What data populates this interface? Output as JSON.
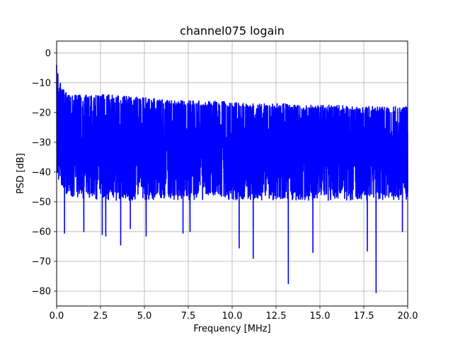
{
  "chart_data": {
    "type": "line",
    "title": "channel075 logain",
    "xlabel": "Frequency [MHz]",
    "ylabel": "PSD [dB]",
    "xlim": [
      0,
      20
    ],
    "ylim": [
      -85,
      4
    ],
    "grid": true,
    "line_color": "#0000ff",
    "x_ticks": [
      0,
      2.5,
      5,
      7.5,
      10,
      12.5,
      15,
      17.5,
      20
    ],
    "x_tick_labels": [
      "0.0",
      "2.5",
      "5.0",
      "7.5",
      "10.0",
      "12.5",
      "15.0",
      "17.5",
      "20.0"
    ],
    "y_ticks": [
      0,
      -10,
      -20,
      -30,
      -40,
      -50,
      -60,
      -70,
      -80
    ],
    "y_tick_labels": [
      "0",
      "−10",
      "−20",
      "−30",
      "−40",
      "−50",
      "−60",
      "−70",
      "−80"
    ],
    "series": [
      {
        "envelope": {
          "x": [
            0,
            0.25,
            0.5,
            1,
            2,
            3,
            4,
            5,
            6,
            7,
            8,
            9,
            10,
            11,
            12,
            13,
            14,
            15,
            16,
            17,
            18,
            19,
            20
          ],
          "upper": [
            -4,
            -11,
            -13,
            -14,
            -14,
            -14,
            -14.5,
            -15,
            -15.5,
            -16,
            -16,
            -16,
            -16.5,
            -17,
            -17,
            -17,
            -17.5,
            -17.5,
            -17.5,
            -18,
            -18,
            -18,
            -18
          ],
          "lower": [
            -40,
            -44,
            -46,
            -47,
            -47.5,
            -48,
            -48,
            -48,
            -48,
            -48,
            -48,
            -48,
            -48,
            -48,
            -48,
            -48,
            -48,
            -48,
            -48,
            -48,
            -48,
            -48,
            -48
          ]
        },
        "notable_minima": [
          {
            "x": 0.45,
            "y": -60.5
          },
          {
            "x": 1.55,
            "y": -60
          },
          {
            "x": 2.6,
            "y": -61
          },
          {
            "x": 2.8,
            "y": -61.5
          },
          {
            "x": 3.65,
            "y": -64.5
          },
          {
            "x": 4.2,
            "y": -59
          },
          {
            "x": 5.1,
            "y": -61.5
          },
          {
            "x": 7.2,
            "y": -60.5
          },
          {
            "x": 7.6,
            "y": -60
          },
          {
            "x": 10.4,
            "y": -65.5
          },
          {
            "x": 11.2,
            "y": -69
          },
          {
            "x": 13.2,
            "y": -77.5
          },
          {
            "x": 14.6,
            "y": -67
          },
          {
            "x": 17.7,
            "y": -66.5
          },
          {
            "x": 18.2,
            "y": -80.5
          },
          {
            "x": 19.7,
            "y": -60
          }
        ]
      }
    ]
  }
}
